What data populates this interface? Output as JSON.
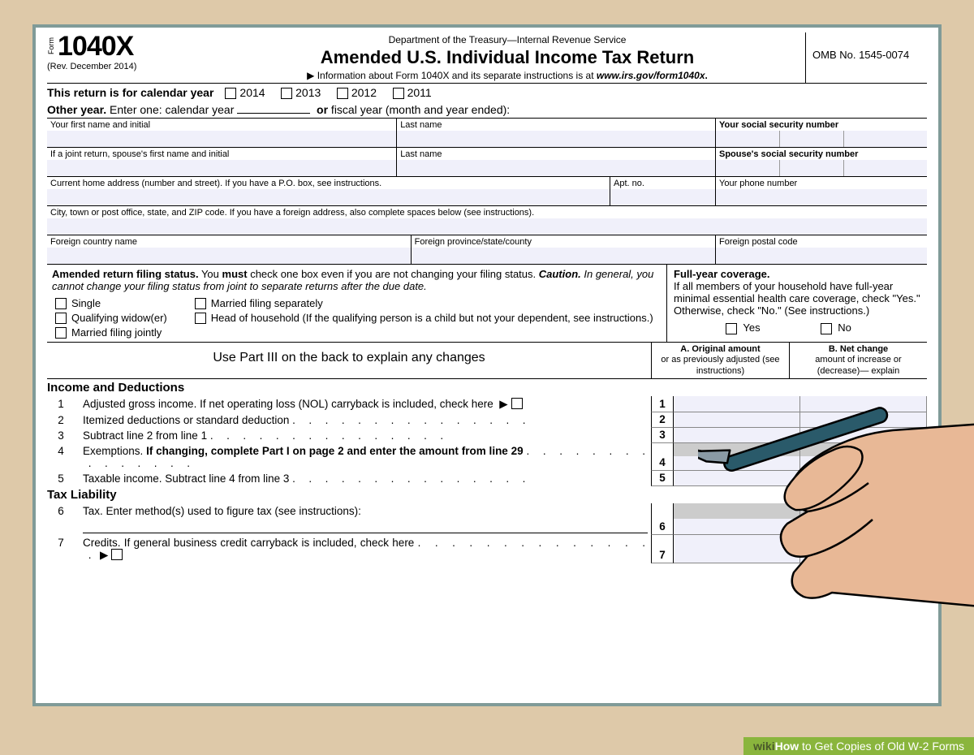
{
  "colors": {
    "page_bg": "#dec9a9",
    "frame": "#809b98",
    "form_bg": "#ffffff",
    "input_tint": "#f0f0fa",
    "grey_cell": "#d8d8d8",
    "watermark_bg": "#8ab53d"
  },
  "header": {
    "form_label": "Form",
    "form_number": "1040X",
    "revision": "(Rev. December 2014)",
    "dept": "Department of the Treasury—Internal Revenue Service",
    "title": "Amended U.S. Individual Income Tax Return",
    "info_prefix": "▶ Information about Form 1040X and its separate instructions is at ",
    "info_url": "www.irs.gov/form1040x",
    "omb": "OMB No. 1545-0074"
  },
  "year_select": {
    "label": "This return is for calendar year",
    "years": [
      "2014",
      "2013",
      "2012",
      "2011"
    ],
    "other_label": "Other year.",
    "other_text1": " Enter one: calendar year",
    "other_text2": "or",
    "other_text3": " fiscal year (month and year ended):"
  },
  "name_fields": {
    "first": "Your first name and initial",
    "last": "Last name",
    "ssn": "Your social security number",
    "spouse_first": "If a joint return, spouse's first name and initial",
    "spouse_last": "Last name",
    "spouse_ssn": "Spouse's social security number",
    "address": "Current home address (number and street). If you have a P.O. box, see instructions.",
    "apt": "Apt. no.",
    "phone": "Your phone number",
    "city": "City, town or post office, state, and ZIP code.  If you have a foreign address, also complete spaces below (see instructions).",
    "foreign_country": "Foreign country name",
    "foreign_state": "Foreign province/state/county",
    "foreign_postal": "Foreign postal code"
  },
  "filing_status": {
    "heading_bold": "Amended return filing status.",
    "heading_text": " You ",
    "must": "must",
    "heading_text2": " check one box even if you are not changing your filing status. ",
    "caution": "Caution.",
    "caution_text": " In general, you cannot change your filing status from joint to separate returns after the due date.",
    "options": [
      {
        "col": 0,
        "label": "Single"
      },
      {
        "col": 0,
        "label": "Qualifying widow(er)"
      },
      {
        "col": 0,
        "label": "Married filing jointly"
      },
      {
        "col": 1,
        "label": "Married filing separately"
      },
      {
        "col": 1,
        "label": "Head of household (If the qualifying person is a child but not your dependent, see instructions.)"
      }
    ]
  },
  "coverage": {
    "heading": "Full-year coverage.",
    "text": "If all members of your household have full-year minimal essential health care coverage, check \"Yes.\" Otherwise, check \"No.\" (See instructions.)",
    "yes": "Yes",
    "no": "No"
  },
  "partiii": "Use Part III on the back to explain any changes",
  "col_a": {
    "bold": "A. Original amount",
    "sub": "or as previously adjusted (see instructions)"
  },
  "col_b": {
    "bold": "B. Net change",
    "sub": "amount of increase or (decrease)— explain"
  },
  "sections": {
    "income": "Income and Deductions",
    "tax": "Tax Liability"
  },
  "lines": [
    {
      "num": "1",
      "text": "Adjusted gross income. If net operating loss (NOL) carryback is included, check here",
      "arrow_box": true,
      "box": "1"
    },
    {
      "num": "2",
      "text": "Itemized deductions or standard deduction",
      "dots": true,
      "box": "2"
    },
    {
      "num": "3",
      "text": "Subtract line 2 from line 1",
      "dots": true,
      "box": "3"
    },
    {
      "num": "4",
      "text_pre": "Exemptions. ",
      "text_bold": "If changing, complete Part I on page 2 and enter the amount from line 29",
      "dots": true,
      "box": "4",
      "shade": true
    },
    {
      "num": "5",
      "text": "Taxable income. Subtract line 4 from line 3",
      "dots": true,
      "box": "5"
    },
    {
      "num": "6",
      "text": "Tax. Enter method(s) used to figure tax (see instructions):",
      "box": "6",
      "shade": true,
      "underline": true
    },
    {
      "num": "7",
      "text": "Credits. If general business credit carryback is included, check here",
      "dots": true,
      "arrow_box": true,
      "box": "7"
    }
  ],
  "watermark": {
    "wiki": "wiki",
    "how": "How",
    "text": " to Get Copies of Old W‑2 Forms"
  }
}
